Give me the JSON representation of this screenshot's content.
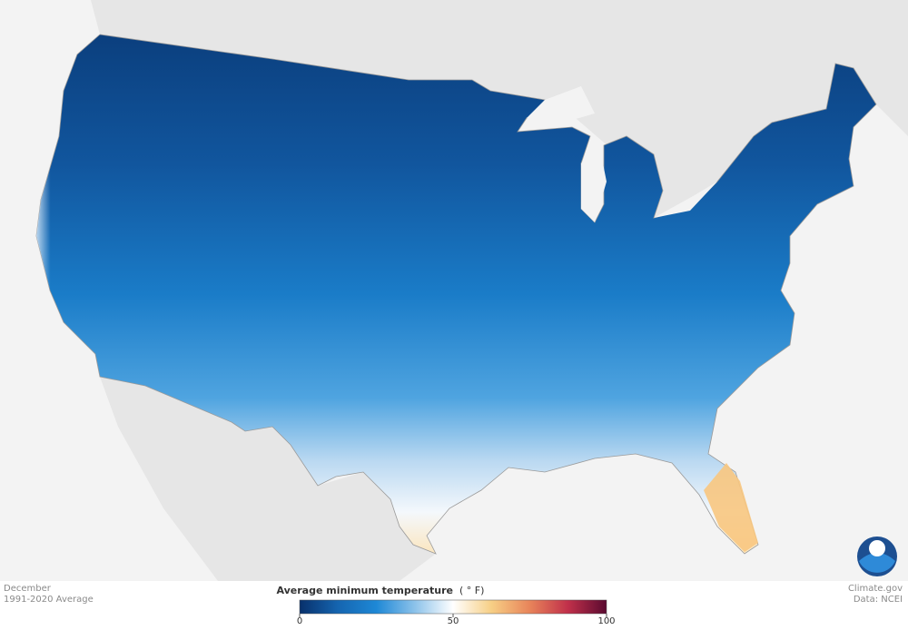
{
  "footer": {
    "month": "December",
    "period": "1991-2020 Average",
    "source": "Climate.gov",
    "data": "Data: NCEI"
  },
  "legend": {
    "title": "Average minimum temperature",
    "unit": "( ° F)",
    "range": [
      0,
      100
    ],
    "ticks": [
      0,
      50,
      100
    ],
    "colors": [
      "#08306b",
      "#1565b0",
      "#1e88d6",
      "#8cc2ea",
      "#ffffff",
      "#f7cf85",
      "#e8845a",
      "#c0304a",
      "#5a0a30"
    ]
  }
}
